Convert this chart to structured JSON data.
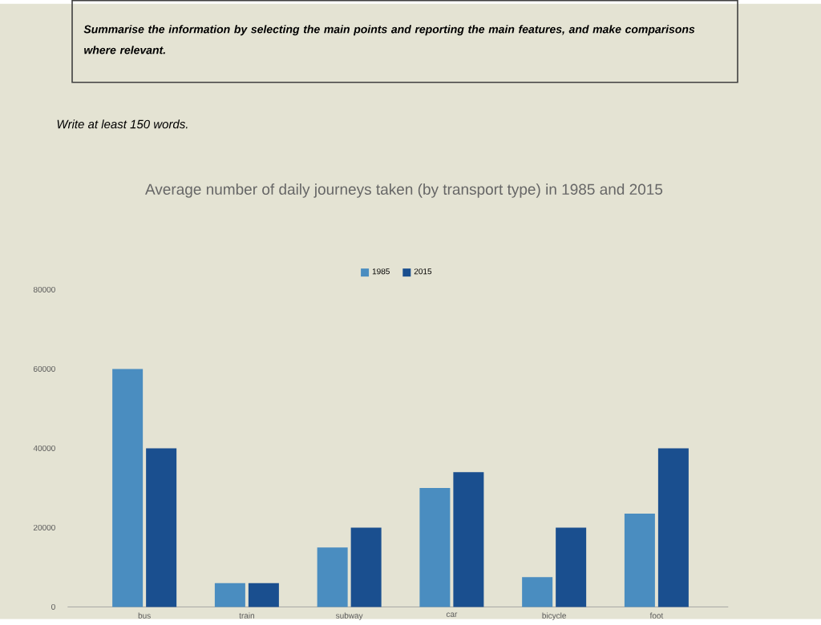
{
  "chart_data": {
    "type": "bar",
    "title": "Average number of daily journeys taken (by transport type) in 1985 and 2015",
    "annotations": [
      "Summarise the information by selecting the main points and reporting the main features, and make comparisons where relevant.",
      "Write at least 150 words."
    ],
    "categories": [
      "bus",
      "train",
      "subway",
      "car",
      "bicycle",
      "foot"
    ],
    "series": [
      {
        "name": "1985",
        "color": "#4a8dc0",
        "values": [
          60000,
          6000,
          15000,
          30000,
          7500,
          23500
        ]
      },
      {
        "name": "2015",
        "color": "#1a4f8f",
        "values": [
          40000,
          6000,
          20000,
          34000,
          20000,
          40000
        ]
      }
    ],
    "ylim": [
      0,
      80000
    ],
    "yticks": [
      0,
      20000,
      40000,
      60000,
      80000
    ],
    "legend": "top"
  }
}
